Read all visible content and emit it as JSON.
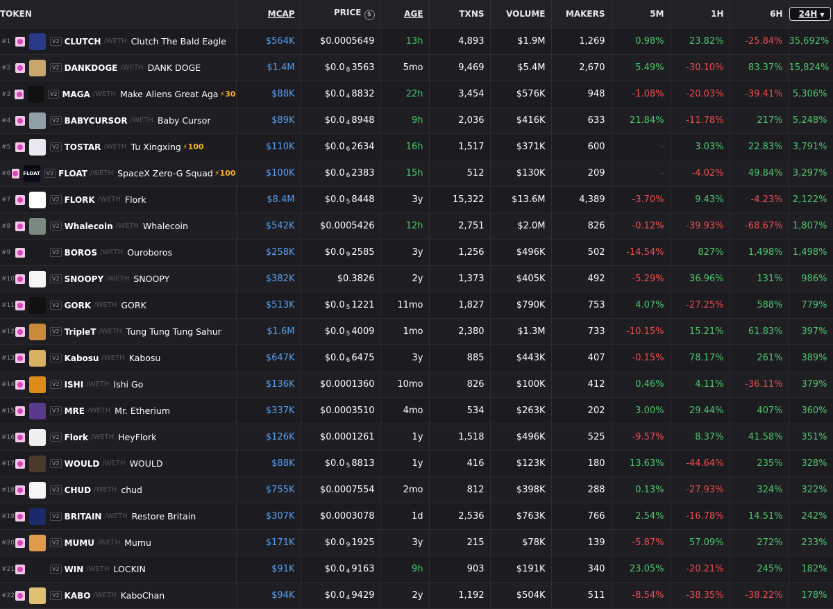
{
  "headers": {
    "token": "TOKEN",
    "mcap": "MCAP",
    "price": "PRICE",
    "age": "AGE",
    "txns": "TXNS",
    "volume": "VOLUME",
    "makers": "MAKERS",
    "m5": "5M",
    "h1": "1H",
    "h6": "6H",
    "h24": "24H"
  },
  "colors": {
    "positive": "#4fc76d",
    "negative": "#ee4e4e",
    "mcap": "#5b9ff0",
    "boost": "#f5b02e"
  },
  "rows": [
    {
      "rank": "#1",
      "ver": "V2",
      "sym": "CLUTCH",
      "quote": "/WETH",
      "name": "Clutch The Bald Eagle",
      "boost": "",
      "mcap": "$564K",
      "price": "$0.0005649",
      "price_sub": "",
      "price_tail": "",
      "age": "13h",
      "txns": "4,893",
      "volume": "$1.9M",
      "makers": "1,269",
      "m5": "0.98%",
      "h1": "23.82%",
      "h6": "-25.84%",
      "h24": "35,692%",
      "avatar_color": "#2a3a8a",
      "avatar_icon": "eagle-icon"
    },
    {
      "rank": "#2",
      "ver": "V2",
      "sym": "DANKDOGE",
      "quote": "/WETH",
      "name": "DANK DOGE",
      "boost": "",
      "mcap": "$1.4M",
      "price": "$0.0",
      "price_sub": "8",
      "price_tail": "3563",
      "age": "5mo",
      "txns": "9,469",
      "volume": "$5.4M",
      "makers": "2,670",
      "m5": "5.49%",
      "h1": "-30.10%",
      "h6": "83.37%",
      "h24": "15,824%",
      "avatar_color": "#c9a56b",
      "avatar_icon": "doge-icon"
    },
    {
      "rank": "#3",
      "ver": "V2",
      "sym": "MAGA",
      "quote": "/WETH",
      "name": "Make Aliens Great Aga",
      "boost": "⚡30",
      "mcap": "$88K",
      "price": "$0.0",
      "price_sub": "4",
      "price_tail": "8832",
      "age": "22h",
      "txns": "3,454",
      "volume": "$576K",
      "makers": "948",
      "m5": "-1.08%",
      "h1": "-20.03%",
      "h6": "-39.41%",
      "h24": "5,306%",
      "avatar_color": "#111111",
      "avatar_icon": "alien-cap-icon"
    },
    {
      "rank": "#4",
      "ver": "V2",
      "sym": "BABYCURSOR",
      "quote": "/WETH",
      "name": "Baby Cursor",
      "boost": "",
      "mcap": "$89K",
      "price": "$0.0",
      "price_sub": "4",
      "price_tail": "8948",
      "age": "9h",
      "txns": "2,036",
      "volume": "$416K",
      "makers": "633",
      "m5": "21.84%",
      "h1": "-11.78%",
      "h6": "217%",
      "h24": "5,248%",
      "avatar_color": "#8fa0a8",
      "avatar_icon": "baby-cursor-icon"
    },
    {
      "rank": "#5",
      "ver": "V2",
      "sym": "TOSTAR",
      "quote": "/WETH",
      "name": "Tu Xingxing",
      "boost": "⚡100",
      "mcap": "$110K",
      "price": "$0.0",
      "price_sub": "6",
      "price_tail": "2634",
      "age": "16h",
      "txns": "1,517",
      "volume": "$371K",
      "makers": "600",
      "m5": "-",
      "h1": "3.03%",
      "h6": "22.83%",
      "h24": "3,791%",
      "avatar_color": "#e8e8f0",
      "avatar_icon": "star-icon"
    },
    {
      "rank": "#6",
      "ver": "V2",
      "sym": "FLOAT",
      "quote": "/WETH",
      "name": "SpaceX Zero-G Squad",
      "boost": "⚡100",
      "mcap": "$100K",
      "price": "$0.0",
      "price_sub": "6",
      "price_tail": "2383",
      "age": "15h",
      "txns": "512",
      "volume": "$130K",
      "makers": "209",
      "m5": "-",
      "h1": "-4.02%",
      "h6": "49.84%",
      "h24": "3,297%",
      "avatar_color": "#0a0a18",
      "avatar_icon": "float-logo-icon",
      "avatar_text": "FLOAT"
    },
    {
      "rank": "#7",
      "ver": "V2",
      "sym": "FLORK",
      "quote": "/WETH",
      "name": "Flork",
      "boost": "",
      "mcap": "$8.4M",
      "price": "$0.0",
      "price_sub": "5",
      "price_tail": "8448",
      "age": "3y",
      "txns": "15,322",
      "volume": "$13.6M",
      "makers": "4,389",
      "m5": "-3.70%",
      "h1": "9.43%",
      "h6": "-4.23%",
      "h24": "2,122%",
      "avatar_color": "#ffffff",
      "avatar_icon": "flork-icon"
    },
    {
      "rank": "#8",
      "ver": "V2",
      "sym": "Whalecoin",
      "quote": "/WETH",
      "name": "Whalecoin",
      "boost": "",
      "mcap": "$542K",
      "price": "$0.0005426",
      "price_sub": "",
      "price_tail": "",
      "age": "12h",
      "txns": "2,751",
      "volume": "$2.0M",
      "makers": "826",
      "m5": "-0.12%",
      "h1": "-39.93%",
      "h6": "-68.67%",
      "h24": "1,807%",
      "avatar_color": "#7a8a80",
      "avatar_icon": "whale-icon"
    },
    {
      "rank": "#9",
      "ver": "V2",
      "sym": "BOROS",
      "quote": "/WETH",
      "name": "Ouroboros",
      "boost": "",
      "mcap": "$258K",
      "price": "$0.0",
      "price_sub": "9",
      "price_tail": "2585",
      "age": "3y",
      "txns": "1,256",
      "volume": "$496K",
      "makers": "502",
      "m5": "-14.54%",
      "h1": "827%",
      "h6": "1,498%",
      "h24": "1,498%",
      "avatar_color": "#1b1b20",
      "avatar_icon": "placeholder-icon"
    },
    {
      "rank": "#10",
      "ver": "V2",
      "sym": "SNOOPY",
      "quote": "/WETH",
      "name": "SNOOPY",
      "boost": "",
      "mcap": "$382K",
      "price": "$0.3826",
      "price_sub": "",
      "price_tail": "",
      "age": "2y",
      "txns": "1,373",
      "volume": "$405K",
      "makers": "492",
      "m5": "-5.29%",
      "h1": "36.96%",
      "h6": "131%",
      "h24": "986%",
      "avatar_color": "#f5f5f5",
      "avatar_icon": "snoopy-icon"
    },
    {
      "rank": "#11",
      "ver": "V2",
      "sym": "GORK",
      "quote": "/WETH",
      "name": "GORK",
      "boost": "",
      "mcap": "$513K",
      "price": "$0.0",
      "price_sub": "5",
      "price_tail": "1221",
      "age": "11mo",
      "txns": "1,827",
      "volume": "$790K",
      "makers": "753",
      "m5": "4.07%",
      "h1": "-27.25%",
      "h6": "588%",
      "h24": "779%",
      "avatar_color": "#111111",
      "avatar_icon": "gork-icon"
    },
    {
      "rank": "#12",
      "ver": "V2",
      "sym": "TripleT",
      "quote": "/WETH",
      "name": "Tung Tung Tung Sahur",
      "boost": "",
      "mcap": "$1.6M",
      "price": "$0.0",
      "price_sub": "5",
      "price_tail": "4009",
      "age": "1mo",
      "txns": "2,380",
      "volume": "$1.3M",
      "makers": "733",
      "m5": "-10.15%",
      "h1": "15.21%",
      "h6": "61.83%",
      "h24": "397%",
      "avatar_color": "#c98a3a",
      "avatar_icon": "tung-icon"
    },
    {
      "rank": "#13",
      "ver": "V2",
      "sym": "Kabosu",
      "quote": "/WETH",
      "name": "Kabosu",
      "boost": "",
      "mcap": "$647K",
      "price": "$0.0",
      "price_sub": "6",
      "price_tail": "6475",
      "age": "3y",
      "txns": "885",
      "volume": "$443K",
      "makers": "407",
      "m5": "-0.15%",
      "h1": "78.17%",
      "h6": "261%",
      "h24": "389%",
      "avatar_color": "#d8b060",
      "avatar_icon": "kabosu-icon"
    },
    {
      "rank": "#14",
      "ver": "V2",
      "sym": "ISHI",
      "quote": "/WETH",
      "name": "Ishi Go",
      "boost": "",
      "mcap": "$136K",
      "price": "$0.0001360",
      "price_sub": "",
      "price_tail": "",
      "age": "10mo",
      "txns": "826",
      "volume": "$100K",
      "makers": "412",
      "m5": "0.46%",
      "h1": "4.11%",
      "h6": "-36.11%",
      "h24": "379%",
      "avatar_color": "#e08a1a",
      "avatar_icon": "ishi-icon"
    },
    {
      "rank": "#15",
      "ver": "V3",
      "sym": "MRE",
      "quote": "/WETH",
      "name": "Mr. Etherium",
      "boost": "",
      "mcap": "$337K",
      "price": "$0.0003510",
      "price_sub": "",
      "price_tail": "",
      "age": "4mo",
      "txns": "534",
      "volume": "$263K",
      "makers": "202",
      "m5": "3.00%",
      "h1": "29.44%",
      "h6": "407%",
      "h24": "360%",
      "avatar_color": "#5a3a8a",
      "avatar_icon": "ethereum-icon"
    },
    {
      "rank": "#16",
      "ver": "V2",
      "sym": "Flork",
      "quote": "/WETH",
      "name": "HeyFlork",
      "boost": "",
      "mcap": "$126K",
      "price": "$0.0001261",
      "price_sub": "",
      "price_tail": "",
      "age": "1y",
      "txns": "1,518",
      "volume": "$496K",
      "makers": "525",
      "m5": "-9.57%",
      "h1": "8.37%",
      "h6": "41.58%",
      "h24": "351%",
      "avatar_color": "#f0f0f0",
      "avatar_icon": "heyflork-icon"
    },
    {
      "rank": "#17",
      "ver": "V2",
      "sym": "WOULD",
      "quote": "/WETH",
      "name": "WOULD",
      "boost": "",
      "mcap": "$88K",
      "price": "$0.0",
      "price_sub": "5",
      "price_tail": "8813",
      "age": "1y",
      "txns": "416",
      "volume": "$123K",
      "makers": "180",
      "m5": "13.63%",
      "h1": "-44.64%",
      "h6": "235%",
      "h24": "328%",
      "avatar_color": "#4a3a2a",
      "avatar_icon": "would-icon"
    },
    {
      "rank": "#18",
      "ver": "V3",
      "sym": "CHUD",
      "quote": "/WETH",
      "name": "chud",
      "boost": "",
      "mcap": "$755K",
      "price": "$0.0007554",
      "price_sub": "",
      "price_tail": "",
      "age": "2mo",
      "txns": "812",
      "volume": "$398K",
      "makers": "288",
      "m5": "0.13%",
      "h1": "-27.93%",
      "h6": "324%",
      "h24": "322%",
      "avatar_color": "#f5f5f5",
      "avatar_icon": "chud-icon"
    },
    {
      "rank": "#19",
      "ver": "V2",
      "sym": "BRITAIN",
      "quote": "/WETH",
      "name": "Restore Britain",
      "boost": "",
      "mcap": "$307K",
      "price": "$0.0003078",
      "price_sub": "",
      "price_tail": "",
      "age": "1d",
      "txns": "2,536",
      "volume": "$763K",
      "makers": "766",
      "m5": "2.54%",
      "h1": "-16.78%",
      "h6": "14.51%",
      "h24": "242%",
      "avatar_color": "#1a2a6a",
      "avatar_icon": "britain-icon"
    },
    {
      "rank": "#20",
      "ver": "V2",
      "sym": "MUMU",
      "quote": "/WETH",
      "name": "Mumu",
      "boost": "",
      "mcap": "$171K",
      "price": "$0.0",
      "price_sub": "9",
      "price_tail": "1925",
      "age": "3y",
      "txns": "215",
      "volume": "$78K",
      "makers": "139",
      "m5": "-5.87%",
      "h1": "57.09%",
      "h6": "272%",
      "h24": "233%",
      "avatar_color": "#e09a4a",
      "avatar_icon": "mumu-icon"
    },
    {
      "rank": "#21",
      "ver": "V2",
      "sym": "WIN",
      "quote": "/WETH",
      "name": "LOCKIN",
      "boost": "",
      "mcap": "$91K",
      "price": "$0.0",
      "price_sub": "4",
      "price_tail": "9163",
      "age": "9h",
      "txns": "903",
      "volume": "$191K",
      "makers": "340",
      "m5": "23.05%",
      "h1": "-20.21%",
      "h6": "245%",
      "h24": "182%",
      "avatar_color": "#1b1b20",
      "avatar_icon": "crosshair-icon"
    },
    {
      "rank": "#22",
      "ver": "V2",
      "sym": "KABO",
      "quote": "/WETH",
      "name": "KaboChan",
      "boost": "",
      "mcap": "$94K",
      "price": "$0.0",
      "price_sub": "4",
      "price_tail": "9429",
      "age": "2y",
      "txns": "1,192",
      "volume": "$504K",
      "makers": "511",
      "m5": "-8.54%",
      "h1": "-38.35%",
      "h6": "-38.22%",
      "h24": "178%",
      "avatar_color": "#e0c070",
      "avatar_icon": "kabochan-icon"
    }
  ]
}
